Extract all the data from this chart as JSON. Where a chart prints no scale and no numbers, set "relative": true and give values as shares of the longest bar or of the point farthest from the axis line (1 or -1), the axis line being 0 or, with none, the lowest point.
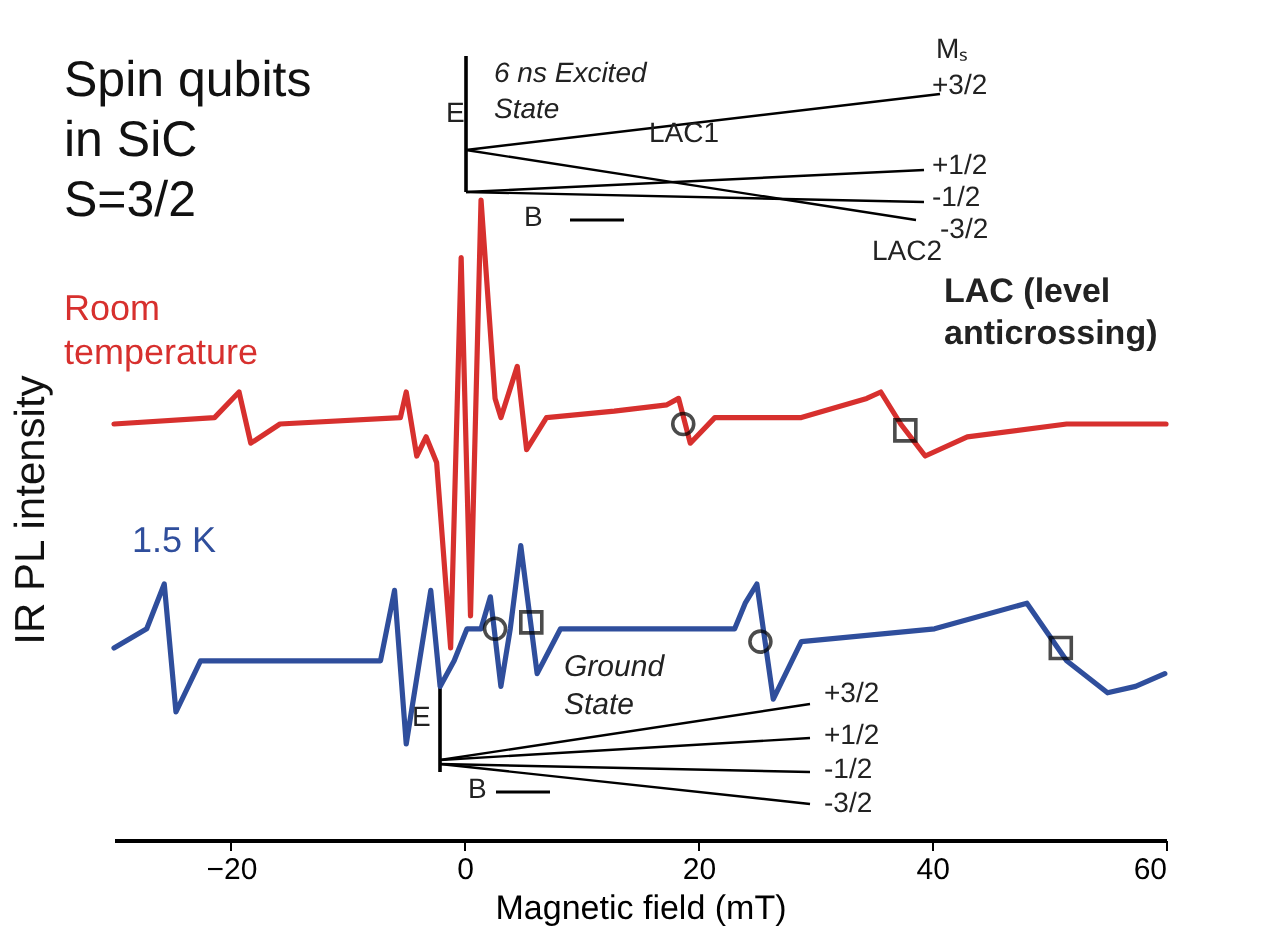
{
  "chart_data": {
    "type": "line",
    "title": "Spin qubits\nin SiC\nS=3/2",
    "xlabel": "Magnetic field (mT)",
    "ylabel": "IR PL intensity",
    "relative": true,
    "grid": false,
    "xlim": [
      -30,
      60
    ],
    "xticks": [
      -20,
      0,
      20,
      40,
      60
    ],
    "series": [
      {
        "name": "Room\ntemperature",
        "color": "#d7302e",
        "x": [
          -30.0,
          -21.4,
          -19.3,
          -18.3,
          -15.8,
          -5.5,
          -5.0,
          -4.1,
          -3.3,
          -2.4,
          -1.2,
          -0.3,
          0.5,
          1.4,
          2.6,
          3.1,
          4.5,
          5.3,
          7.0,
          12.8,
          17.3,
          18.3,
          19.3,
          21.4,
          28.8,
          34.4,
          35.6,
          37.3,
          39.4,
          43.0,
          51.5,
          60.0
        ],
        "values": [
          0.65,
          0.66,
          0.7,
          0.62,
          0.65,
          0.66,
          0.7,
          0.6,
          0.63,
          0.59,
          0.3,
          0.91,
          0.35,
          1.0,
          0.69,
          0.66,
          0.74,
          0.61,
          0.66,
          0.67,
          0.68,
          0.69,
          0.62,
          0.66,
          0.66,
          0.69,
          0.7,
          0.65,
          0.6,
          0.63,
          0.65,
          0.65
        ]
      },
      {
        "name": "1.5 K",
        "color": "#2f4e9c",
        "x": [
          -30.0,
          -27.2,
          -25.7,
          -24.7,
          -22.6,
          -15.8,
          -7.2,
          -6.0,
          -5.0,
          -2.9,
          -2.1,
          -0.9,
          0.2,
          1.4,
          2.2,
          3.1,
          3.9,
          4.8,
          6.2,
          8.2,
          18.5,
          23.1,
          24.0,
          25.0,
          26.4,
          28.8,
          40.2,
          48.1,
          51.5,
          55.0,
          57.4,
          59.9
        ],
        "values": [
          0.3,
          0.33,
          0.4,
          0.2,
          0.28,
          0.28,
          0.28,
          0.39,
          0.15,
          0.39,
          0.24,
          0.28,
          0.33,
          0.33,
          0.38,
          0.24,
          0.33,
          0.46,
          0.26,
          0.33,
          0.33,
          0.33,
          0.37,
          0.4,
          0.22,
          0.31,
          0.33,
          0.37,
          0.28,
          0.23,
          0.24,
          0.26
        ]
      },
      {
        "type": "scatter",
        "marker": "circle",
        "color": "#000000",
        "x": [
          18.7,
          25.3,
          2.6
        ],
        "values": [
          0.65,
          0.31,
          0.33
        ]
      },
      {
        "type": "scatter",
        "marker": "square",
        "color": "#000000",
        "x": [
          37.7,
          51.0,
          5.7
        ],
        "values": [
          0.64,
          0.3,
          0.34
        ]
      }
    ],
    "annotations": [
      "6 ns Excited\nState",
      "E",
      "LAC1",
      "Mₛ",
      "+3/2",
      "+1/2",
      "-1/2",
      "-3/2",
      "LAC2",
      "B",
      "Ground\nState",
      "E",
      "B",
      "+3/2",
      "+1/2",
      "-1/2",
      "-3/2",
      "LAC (level\nanticrossing)"
    ]
  }
}
